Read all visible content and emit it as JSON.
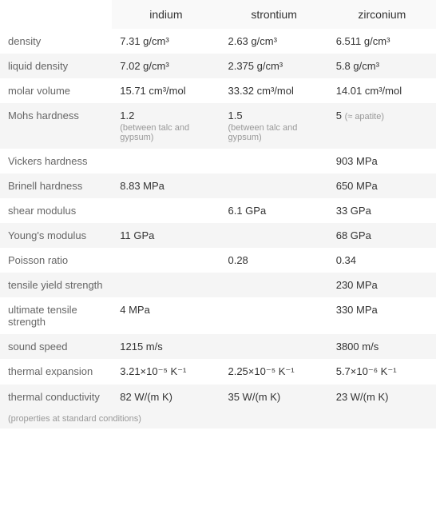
{
  "columns": [
    "",
    "indium",
    "strontium",
    "zirconium"
  ],
  "rows": [
    {
      "label": "density",
      "values": [
        {
          "main": "7.31 g/cm³"
        },
        {
          "main": "2.63 g/cm³"
        },
        {
          "main": "6.511 g/cm³"
        }
      ]
    },
    {
      "label": "liquid density",
      "values": [
        {
          "main": "7.02 g/cm³"
        },
        {
          "main": "2.375 g/cm³"
        },
        {
          "main": "5.8 g/cm³"
        }
      ]
    },
    {
      "label": "molar volume",
      "values": [
        {
          "main": "15.71 cm³/mol"
        },
        {
          "main": "33.32 cm³/mol"
        },
        {
          "main": "14.01 cm³/mol"
        }
      ]
    },
    {
      "label": "Mohs hardness",
      "values": [
        {
          "main": "1.2",
          "sub": "(between talc and gypsum)"
        },
        {
          "main": "1.5",
          "sub": "(between talc and gypsum)"
        },
        {
          "main": "5 ",
          "sub_inline": "(≈ apatite)"
        }
      ]
    },
    {
      "label": "Vickers hardness",
      "values": [
        {
          "main": ""
        },
        {
          "main": ""
        },
        {
          "main": "903 MPa"
        }
      ]
    },
    {
      "label": "Brinell hardness",
      "values": [
        {
          "main": "8.83 MPa"
        },
        {
          "main": ""
        },
        {
          "main": "650 MPa"
        }
      ]
    },
    {
      "label": "shear modulus",
      "values": [
        {
          "main": ""
        },
        {
          "main": "6.1 GPa"
        },
        {
          "main": "33 GPa"
        }
      ]
    },
    {
      "label": "Young's modulus",
      "values": [
        {
          "main": "11 GPa"
        },
        {
          "main": ""
        },
        {
          "main": "68 GPa"
        }
      ]
    },
    {
      "label": "Poisson ratio",
      "values": [
        {
          "main": ""
        },
        {
          "main": "0.28"
        },
        {
          "main": "0.34"
        }
      ]
    },
    {
      "label": "tensile yield strength",
      "values": [
        {
          "main": ""
        },
        {
          "main": ""
        },
        {
          "main": "230 MPa"
        }
      ]
    },
    {
      "label": "ultimate tensile strength",
      "values": [
        {
          "main": "4 MPa"
        },
        {
          "main": ""
        },
        {
          "main": "330 MPa"
        }
      ]
    },
    {
      "label": "sound speed",
      "values": [
        {
          "main": "1215 m/s"
        },
        {
          "main": ""
        },
        {
          "main": "3800 m/s"
        }
      ]
    },
    {
      "label": "thermal expansion",
      "values": [
        {
          "main": "3.21×10⁻⁵ K⁻¹"
        },
        {
          "main": "2.25×10⁻⁵ K⁻¹"
        },
        {
          "main": "5.7×10⁻⁶ K⁻¹"
        }
      ]
    },
    {
      "label": "thermal conductivity",
      "values": [
        {
          "main": "82 W/(m K)"
        },
        {
          "main": "35 W/(m K)"
        },
        {
          "main": "23 W/(m K)"
        }
      ]
    }
  ],
  "footnote": "(properties at standard conditions)",
  "styling": {
    "header_bg": "#f9f9f9",
    "row_alt_bg": "#f5f5f5",
    "row_bg": "#ffffff",
    "text_color": "#333333",
    "label_color": "#666666",
    "sub_color": "#999999",
    "font_size": 13,
    "header_font_size": 14,
    "sub_font_size": 11,
    "col_label_width": 140,
    "col_data_width": 135
  }
}
